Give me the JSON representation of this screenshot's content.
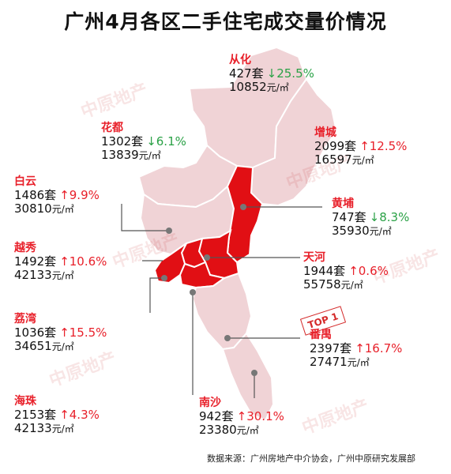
{
  "title": "广州4月各区二手住宅成交量价情况",
  "watermark_text": "中原地产",
  "source": "数据来源：广州房地产中介协会，广州中原研究发展部",
  "top_badge": "TOP 1",
  "colors": {
    "highlight_red": "#e10f14",
    "base_pink": "#f0d3d6",
    "border": "#ffffff",
    "up": "#e8202a",
    "down": "#2aa146"
  },
  "districts": [
    {
      "key": "conghua",
      "name": "从化",
      "volume": "427套",
      "arrow": "↓",
      "pct": "25.5%",
      "trend": "down",
      "price": "10852",
      "unit": "元/㎡"
    },
    {
      "key": "huadu",
      "name": "花都",
      "volume": "1302套",
      "arrow": "↓",
      "pct": "6.1%",
      "trend": "down",
      "price": "13839",
      "unit": "元/㎡"
    },
    {
      "key": "zengcheng",
      "name": "增城",
      "volume": "2099套",
      "arrow": "↑",
      "pct": "12.5%",
      "trend": "up",
      "price": "16597",
      "unit": "元/㎡"
    },
    {
      "key": "baiyun",
      "name": "白云",
      "volume": "1486套",
      "arrow": "↑",
      "pct": "9.9%",
      "trend": "up",
      "price": "30810",
      "unit": "元/㎡"
    },
    {
      "key": "huangpu",
      "name": "黄埔",
      "volume": "747套",
      "arrow": "↓",
      "pct": "8.3%",
      "trend": "down",
      "price": "35930",
      "unit": "元/㎡"
    },
    {
      "key": "yuexiu",
      "name": "越秀",
      "volume": "1492套",
      "arrow": "↑",
      "pct": "10.6%",
      "trend": "up",
      "price": "42133",
      "unit": "元/㎡"
    },
    {
      "key": "tianhe",
      "name": "天河",
      "volume": "1944套",
      "arrow": "↑",
      "pct": "0.6%",
      "trend": "up",
      "price": "55758",
      "unit": "元/㎡"
    },
    {
      "key": "liwan",
      "name": "荔湾",
      "volume": "1036套",
      "arrow": "↑",
      "pct": "15.5%",
      "trend": "up",
      "price": "34651",
      "unit": "元/㎡"
    },
    {
      "key": "panyu",
      "name": "番禺",
      "volume": "2397套",
      "arrow": "↑",
      "pct": "16.7%",
      "trend": "up",
      "price": "27471",
      "unit": "元/㎡"
    },
    {
      "key": "haizhu",
      "name": "海珠",
      "volume": "2153套",
      "arrow": "↑",
      "pct": "4.3%",
      "trend": "up",
      "price": "42133",
      "unit": "元/㎡"
    },
    {
      "key": "nansha",
      "name": "南沙",
      "volume": "942套",
      "arrow": "↑",
      "pct": "30.1%",
      "trend": "up",
      "price": "23380",
      "unit": "元/㎡"
    }
  ]
}
